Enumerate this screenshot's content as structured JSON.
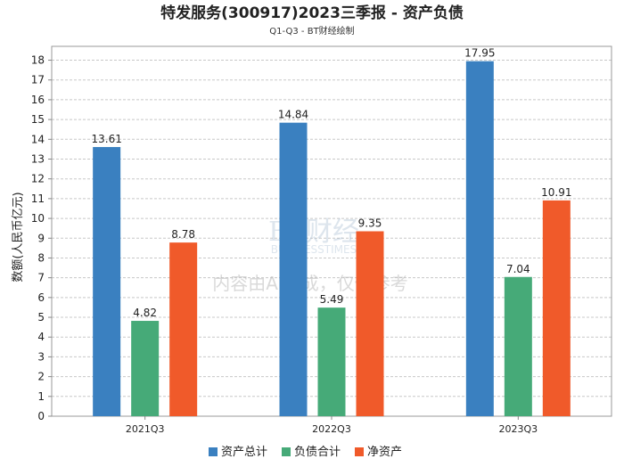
{
  "chart_data": {
    "type": "bar",
    "title": "特发服务(300917)2023三季报 - 资产负债",
    "subtitle": "Q1-Q3 - BT财经绘制",
    "xlabel": "",
    "ylabel": "数额(人民币亿元)",
    "ylim": [
      0,
      18.7
    ],
    "yticks": [
      0,
      1,
      2,
      3,
      4,
      5,
      6,
      7,
      8,
      9,
      10,
      11,
      12,
      13,
      14,
      15,
      16,
      17,
      18
    ],
    "categories": [
      "2021Q3",
      "2022Q3",
      "2023Q3"
    ],
    "series": [
      {
        "name": "资产总计",
        "color": "#3a80c0",
        "values": [
          13.61,
          14.84,
          17.95
        ]
      },
      {
        "name": "负债合计",
        "color": "#46aa78",
        "values": [
          4.82,
          5.49,
          7.04
        ]
      },
      {
        "name": "净资产",
        "color": "#f05a2a",
        "values": [
          8.78,
          9.35,
          10.91
        ]
      }
    ],
    "grid": true,
    "legend": "bottom"
  },
  "watermark": {
    "logo_text": "BT财经",
    "logo_sub": "BUSINESSTIMES",
    "notice": "内容由AI生成，仅供参考"
  }
}
